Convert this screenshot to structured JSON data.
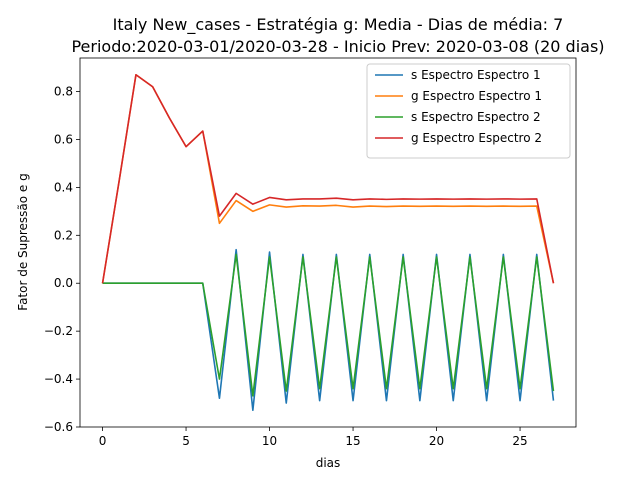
{
  "chart_data": {
    "type": "line",
    "title_line1": "Italy New_cases - Estratégia g: Media - Dias de média: 7",
    "title_line2": "Periodo:2020-03-01/2020-03-28 - Inicio Prev: 2020-03-08 (20 dias)",
    "xlabel": "dias",
    "ylabel": "Fator de Supressão e g",
    "xlim": [
      -1.35,
      28.35
    ],
    "ylim": [
      -0.6,
      0.94
    ],
    "xticks": [
      0,
      5,
      10,
      15,
      20,
      25
    ],
    "yticks": [
      -0.6,
      -0.4,
      -0.2,
      0.0,
      0.2,
      0.4,
      0.6,
      0.8
    ],
    "ytick_labels": [
      "−0.6",
      "−0.4",
      "−0.2",
      "0.0",
      "0.2",
      "0.4",
      "0.6",
      "0.8"
    ],
    "legend_position": "top-right",
    "x": [
      0,
      1,
      2,
      3,
      4,
      5,
      6,
      7,
      8,
      9,
      10,
      11,
      12,
      13,
      14,
      15,
      16,
      17,
      18,
      19,
      20,
      21,
      22,
      23,
      24,
      25,
      26,
      27
    ],
    "series": [
      {
        "name": "s Espectro Espectro 1",
        "color": "#1f77b4",
        "values": [
          0,
          0,
          0,
          0,
          0,
          0,
          0,
          -0.48,
          0.14,
          -0.53,
          0.13,
          -0.5,
          0.12,
          -0.49,
          0.12,
          -0.49,
          0.12,
          -0.49,
          0.12,
          -0.49,
          0.12,
          -0.49,
          0.12,
          -0.49,
          0.12,
          -0.49,
          0.12,
          -0.49
        ]
      },
      {
        "name": "g Espectro Espectro 1",
        "color": "#ff7f0e",
        "values": [
          0,
          0.43,
          0.87,
          0.82,
          0.69,
          0.57,
          0.635,
          0.25,
          0.345,
          0.3,
          0.327,
          0.318,
          0.323,
          0.322,
          0.325,
          0.318,
          0.322,
          0.32,
          0.322,
          0.321,
          0.322,
          0.321,
          0.322,
          0.321,
          0.322,
          0.321,
          0.322,
          0.0
        ]
      },
      {
        "name": "s Espectro Espectro 2",
        "color": "#2ca02c",
        "values": [
          0,
          0,
          0,
          0,
          0,
          0,
          0,
          -0.4,
          0.12,
          -0.47,
          0.11,
          -0.45,
          0.11,
          -0.44,
          0.11,
          -0.44,
          0.11,
          -0.44,
          0.11,
          -0.44,
          0.11,
          -0.44,
          0.11,
          -0.44,
          0.11,
          -0.44,
          0.11,
          -0.45
        ]
      },
      {
        "name": "g Espectro Espectro 2",
        "color": "#d62728",
        "values": [
          0,
          0.43,
          0.87,
          0.82,
          0.69,
          0.57,
          0.635,
          0.28,
          0.375,
          0.33,
          0.358,
          0.348,
          0.352,
          0.352,
          0.355,
          0.348,
          0.352,
          0.35,
          0.352,
          0.351,
          0.352,
          0.351,
          0.352,
          0.351,
          0.352,
          0.351,
          0.352,
          0.0
        ]
      }
    ]
  }
}
